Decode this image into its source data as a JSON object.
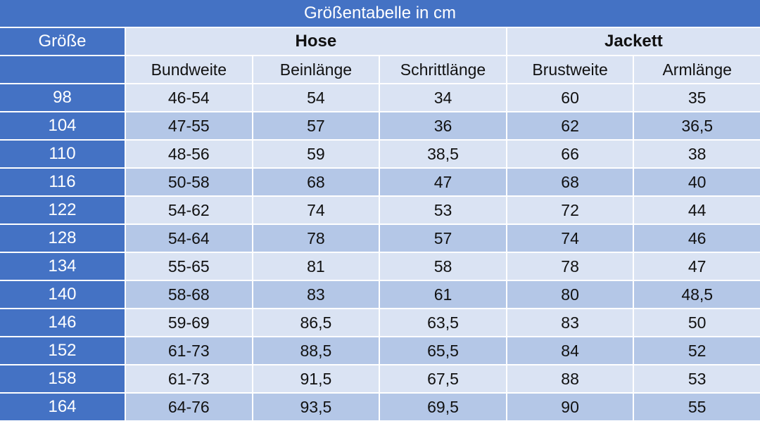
{
  "table": {
    "title": "Größentabelle in cm",
    "size_label": "Größe",
    "groups": [
      "Hose",
      "Jackett"
    ],
    "columns": [
      "Bundweite",
      "Beinlänge",
      "Schrittlänge",
      "Brustweite",
      "Armlänge"
    ],
    "rows": [
      [
        "98",
        "46-54",
        "54",
        "34",
        "60",
        "35"
      ],
      [
        "104",
        "47-55",
        "57",
        "36",
        "62",
        "36,5"
      ],
      [
        "110",
        "48-56",
        "59",
        "38,5",
        "66",
        "38"
      ],
      [
        "116",
        "50-58",
        "68",
        "47",
        "68",
        "40"
      ],
      [
        "122",
        "54-62",
        "74",
        "53",
        "72",
        "44"
      ],
      [
        "128",
        "54-64",
        "78",
        "57",
        "74",
        "46"
      ],
      [
        "134",
        "55-65",
        "81",
        "58",
        "78",
        "47"
      ],
      [
        "140",
        "58-68",
        "83",
        "61",
        "80",
        "48,5"
      ],
      [
        "146",
        "59-69",
        "86,5",
        "63,5",
        "83",
        "50"
      ],
      [
        "152",
        "61-73",
        "88,5",
        "65,5",
        "84",
        "52"
      ],
      [
        "158",
        "61-73",
        "91,5",
        "67,5",
        "88",
        "53"
      ],
      [
        "164",
        "64-76",
        "93,5",
        "69,5",
        "90",
        "55"
      ]
    ]
  }
}
